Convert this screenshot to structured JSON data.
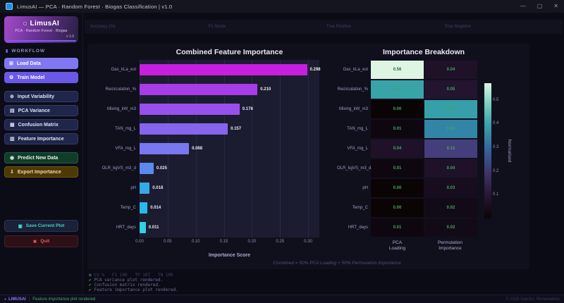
{
  "window": {
    "app_title": "LimusAI  —  PCA · Random Forest · Biogas Classification  |  v1.0",
    "controls": {
      "minimize": "—",
      "maximize": "▢",
      "close": "✕"
    }
  },
  "sidebar": {
    "brand": {
      "glyph": "▢",
      "name": "LimusAI",
      "subtitle": "PCA · Random Forest · Biogas",
      "version": "v 1.0"
    },
    "section_label": "WORKFLOW",
    "section_icon": "▮",
    "nav": [
      {
        "label": "Load Data",
        "icon_name": "open-folder-icon",
        "glyph": "⊞",
        "style": "nav-primary",
        "gap_after": false
      },
      {
        "label": "Train Model",
        "icon_name": "gear-icon",
        "glyph": "⚙",
        "style": "nav-primary2",
        "gap_after": true
      },
      {
        "label": "Input Variability",
        "icon_name": "variability-icon",
        "glyph": "⊕",
        "style": "nav-dark",
        "gap_after": false
      },
      {
        "label": "PCA Variance",
        "icon_name": "variance-chart-icon",
        "glyph": "▤",
        "style": "nav-dark",
        "gap_after": false
      },
      {
        "label": "Confusion Matrix",
        "icon_name": "matrix-grid-icon",
        "glyph": "▦",
        "style": "nav-dark",
        "gap_after": false
      },
      {
        "label": "Feature Importance",
        "icon_name": "importance-bars-icon",
        "glyph": "▥",
        "style": "nav-dark",
        "gap_after": true
      },
      {
        "label": "Predict New Data",
        "icon_name": "predict-icon",
        "glyph": "◉",
        "style": "nav-green",
        "gap_after": false
      },
      {
        "label": "Export Importance",
        "icon_name": "export-icon",
        "glyph": "⇩",
        "style": "nav-amber",
        "gap_after": false
      }
    ],
    "save_plot": {
      "label": "Save Current Plot",
      "glyph": "▣"
    },
    "quit": {
      "label": "Quit",
      "glyph": "✖"
    }
  },
  "metrics_bar": {
    "labels": [
      "Accuracy (%)",
      "F1 Score",
      "True Positive",
      "True Negative"
    ]
  },
  "chart_data": [
    {
      "type": "bar",
      "orientation": "horizontal",
      "title": "Combined Feature Importance",
      "xlabel": "Importance Score",
      "categories": [
        "Gas_kLa_est",
        "Recirculation_%",
        "Mixing_kW_m3",
        "TAN_mg_L",
        "VFA_mg_L",
        "OLR_kgVS_m3_d",
        "pH",
        "Temp_C",
        "HRT_days"
      ],
      "values": [
        0.298,
        0.21,
        0.178,
        0.157,
        0.088,
        0.025,
        0.018,
        0.014,
        0.011
      ],
      "bar_colors": [
        "#c71fe0",
        "#a73ce8",
        "#9850ec",
        "#8564ee",
        "#7a78f0",
        "#5c89f0",
        "#38a8e8",
        "#29b9e8",
        "#33cfe2"
      ],
      "xlim": [
        0,
        0.32
      ],
      "xticks": [
        0.0,
        0.05,
        0.1,
        0.15,
        0.2,
        0.25,
        0.3
      ],
      "grid": true,
      "plot_bg": "#1c1c31"
    },
    {
      "type": "heatmap",
      "title": "Importance Breakdown",
      "rows": [
        "Gas_kLa_est",
        "Recirculation_%",
        "Mixing_kW_m3",
        "TAN_mg_L",
        "VFA_mg_L",
        "OLR_kgVS_m3_d",
        "pH",
        "Temp_C",
        "HRT_days"
      ],
      "columns": [
        [
          "PCA",
          "Loading"
        ],
        [
          "Permutation",
          "Importance"
        ]
      ],
      "values": [
        [
          0.56,
          0.04
        ],
        [
          0.37,
          0.05
        ],
        [
          0.0,
          0.36
        ],
        [
          0.01,
          0.31
        ],
        [
          0.04,
          0.13
        ],
        [
          0.01,
          0.04
        ],
        [
          0.0,
          0.03
        ],
        [
          0.0,
          0.02
        ],
        [
          0.01,
          0.02
        ]
      ],
      "cell_colors": [
        [
          "#def5e4",
          "#1e1128"
        ],
        [
          "#38a4aa",
          "#231430"
        ],
        [
          "#0b0405",
          "#369fa9"
        ],
        [
          "#0e0710",
          "#3285a6"
        ],
        [
          "#1e1128",
          "#443e7c"
        ],
        [
          "#0e0710",
          "#1e1128"
        ],
        [
          "#0b0405",
          "#180d1f"
        ],
        [
          "#0b0405",
          "#130a17"
        ],
        [
          "#0e0710",
          "#130a17"
        ]
      ],
      "value_text_light": "#43a35f",
      "value_text_dark": "#256b3c",
      "colorbar": {
        "label": "Normalised",
        "ticks": [
          0.1,
          0.2,
          0.3,
          0.4,
          0.5
        ],
        "vmin": 0,
        "vmax": 0.57
      }
    }
  ],
  "caption": "Combined = 50% PCA Loading + 50% Permutation Importance",
  "console": {
    "lines": [
      {
        "icon": "■",
        "dim": true,
        "text": "CV %   F1 100   TP 107   TN 100"
      },
      {
        "icon": "✔",
        "dim": false,
        "text": "PCA variance plot rendered."
      },
      {
        "icon": "✔",
        "dim": false,
        "text": "Confusion matrix rendered."
      },
      {
        "icon": "✔",
        "dim": false,
        "text": "Feature importance plot rendered."
      }
    ]
  },
  "status_bar": {
    "bullet": "●",
    "brand": "LIMUSAI",
    "separator": "|",
    "message": "Feature importance plot rendered",
    "copyright": "© 2025 GasSci. Renewables"
  }
}
